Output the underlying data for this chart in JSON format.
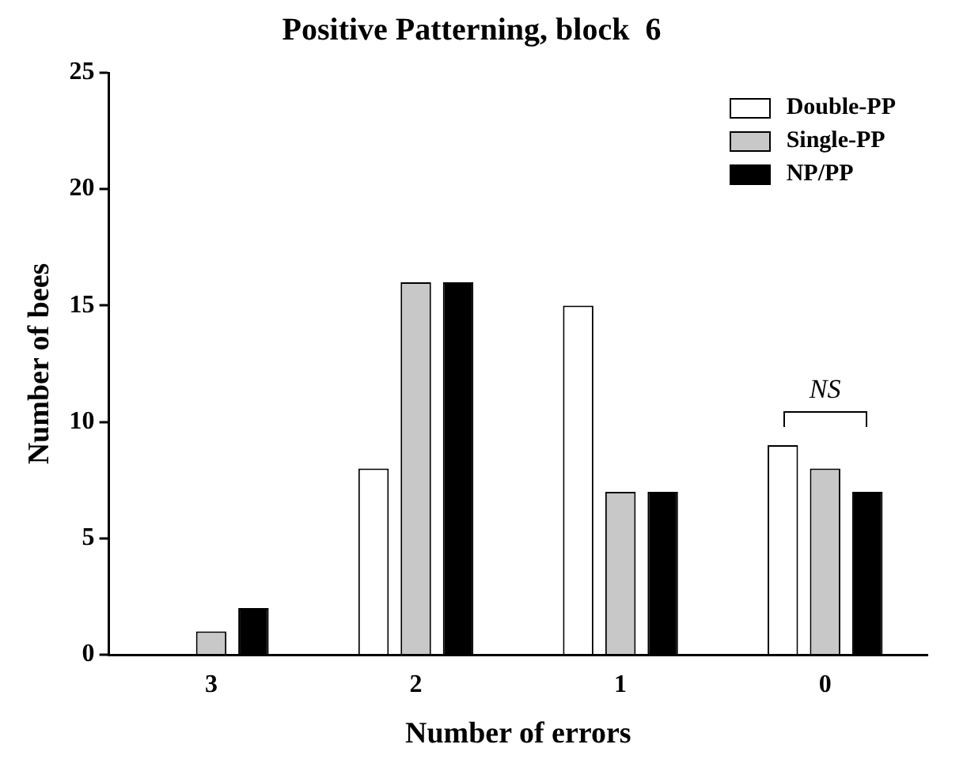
{
  "chart_data": {
    "type": "bar",
    "title": "Positive Patterning, block  6",
    "xlabel": "Number of errors",
    "ylabel": "Number of bees",
    "categories": [
      "3",
      "2",
      "1",
      "0"
    ],
    "series": [
      {
        "name": "Double-PP",
        "color": "#ffffff",
        "values": [
          0,
          8,
          15,
          9
        ]
      },
      {
        "name": "Single-PP",
        "color": "#c8c8c8",
        "values": [
          1,
          16,
          7,
          8
        ]
      },
      {
        "name": "NP/PP",
        "color": "#000000",
        "values": [
          2,
          16,
          7,
          7
        ]
      }
    ],
    "ylim": [
      0,
      25
    ],
    "yticks": [
      0,
      5,
      10,
      15,
      20,
      25
    ],
    "grid": false,
    "legend": "top right",
    "annotations": [
      "NS"
    ]
  }
}
